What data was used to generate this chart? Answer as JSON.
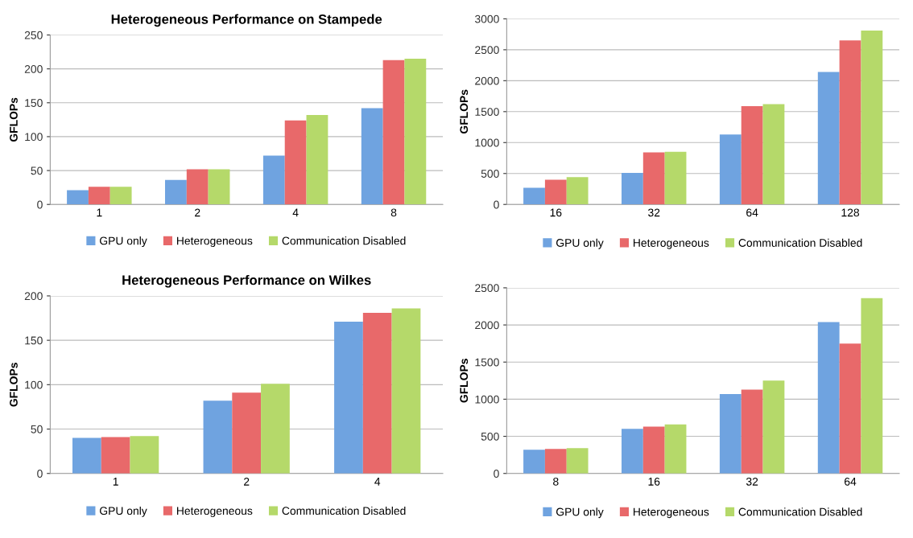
{
  "chart_data": [
    {
      "type": "bar",
      "title": "Heterogeneous Performance on Stampede",
      "ylabel": "GFLOPs",
      "categories": [
        "1",
        "2",
        "4",
        "8"
      ],
      "ylim": [
        0,
        250
      ],
      "yticks": [
        0,
        50,
        100,
        150,
        200,
        250
      ],
      "grid": "y",
      "legend": "bottom",
      "series": [
        {
          "name": "GPU only",
          "color": "#6fa3e0",
          "values": [
            21,
            36,
            72,
            142
          ]
        },
        {
          "name": "Heterogeneous",
          "color": "#e8696a",
          "values": [
            26,
            52,
            124,
            213
          ]
        },
        {
          "name": "Communication Disabled",
          "color": "#b5d96a",
          "values": [
            26,
            52,
            132,
            215
          ]
        }
      ]
    },
    {
      "type": "bar",
      "ylabel": "GFLOPs",
      "categories": [
        "16",
        "32",
        "64",
        "128"
      ],
      "ylim": [
        0,
        3000
      ],
      "yticks": [
        0,
        500,
        1000,
        1500,
        2000,
        2500,
        3000
      ],
      "grid": "y",
      "legend": "bottom",
      "series": [
        {
          "name": "GPU only",
          "color": "#6fa3e0",
          "values": [
            270,
            510,
            1130,
            2140
          ]
        },
        {
          "name": "Heterogeneous",
          "color": "#e8696a",
          "values": [
            400,
            840,
            1590,
            2650
          ]
        },
        {
          "name": "Communication Disabled",
          "color": "#b5d96a",
          "values": [
            440,
            850,
            1620,
            2810
          ]
        }
      ]
    },
    {
      "type": "bar",
      "title": "Heterogeneous Performance on Wilkes",
      "ylabel": "GFLOPs",
      "categories": [
        "1",
        "2",
        "4"
      ],
      "ylim": [
        0,
        200
      ],
      "yticks": [
        0,
        50,
        100,
        150,
        200
      ],
      "grid": "y",
      "legend": "bottom",
      "series": [
        {
          "name": "GPU only",
          "color": "#6fa3e0",
          "values": [
            40,
            82,
            171
          ]
        },
        {
          "name": "Heterogeneous",
          "color": "#e8696a",
          "values": [
            41,
            91,
            181
          ]
        },
        {
          "name": "Communication Disabled",
          "color": "#b5d96a",
          "values": [
            42,
            101,
            186
          ]
        }
      ]
    },
    {
      "type": "bar",
      "ylabel": "GFLOPs",
      "categories": [
        "8",
        "16",
        "32",
        "64"
      ],
      "ylim": [
        0,
        2500
      ],
      "yticks": [
        0,
        500,
        1000,
        1500,
        2000,
        2500
      ],
      "grid": "y",
      "legend": "bottom",
      "series": [
        {
          "name": "GPU only",
          "color": "#6fa3e0",
          "values": [
            320,
            600,
            1070,
            2040
          ]
        },
        {
          "name": "Heterogeneous",
          "color": "#e8696a",
          "values": [
            330,
            630,
            1130,
            1750
          ]
        },
        {
          "name": "Communication Disabled",
          "color": "#b5d96a",
          "values": [
            340,
            660,
            1250,
            2360
          ]
        }
      ]
    }
  ]
}
